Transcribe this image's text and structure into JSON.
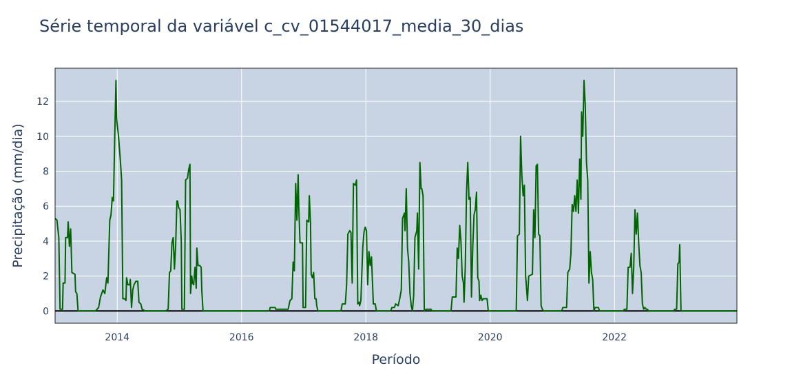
{
  "chart_data": {
    "type": "line",
    "title": "Série temporal da variável c_cv_01544017_media_30_dias",
    "xlabel": "Período",
    "ylabel": "Precipitação (mm/dia)",
    "xlim": [
      2013.0,
      2023.97
    ],
    "ylim": [
      -0.7,
      13.9
    ],
    "x_tick_labels": [
      "2014",
      "2016",
      "2018",
      "2020",
      "2022"
    ],
    "x_tick_values": [
      2014,
      2016,
      2018,
      2020,
      2022
    ],
    "y_tick_labels": [
      "0",
      "2",
      "4",
      "6",
      "8",
      "10",
      "12"
    ],
    "y_tick_values": [
      0,
      2,
      4,
      6,
      8,
      10,
      12
    ],
    "grid": true,
    "legend": "none",
    "colors": {
      "series": "#006400",
      "plot_bg": "#c8d4e3",
      "grid": "#ffffff",
      "zero_line": "#000000",
      "text": "#2a3f5f"
    },
    "series": [
      {
        "points": [
          [
            2013.0,
            5.3
          ],
          [
            2013.03,
            5.2
          ],
          [
            2013.06,
            4.2
          ],
          [
            2013.08,
            0.1
          ],
          [
            2013.12,
            0.1
          ],
          [
            2013.13,
            1.6
          ],
          [
            2013.16,
            1.6
          ],
          [
            2013.17,
            4.2
          ],
          [
            2013.2,
            4.2
          ],
          [
            2013.21,
            5.1
          ],
          [
            2013.23,
            3.7
          ],
          [
            2013.25,
            4.7
          ],
          [
            2013.27,
            2.2
          ],
          [
            2013.32,
            2.1
          ],
          [
            2013.33,
            1.1
          ],
          [
            2013.35,
            1.0
          ],
          [
            2013.37,
            0.0
          ],
          [
            2013.65,
            0.0
          ],
          [
            2013.7,
            0.2
          ],
          [
            2013.73,
            0.8
          ],
          [
            2013.77,
            1.2
          ],
          [
            2013.8,
            1.0
          ],
          [
            2013.83,
            1.9
          ],
          [
            2013.85,
            1.6
          ],
          [
            2013.88,
            5.2
          ],
          [
            2013.9,
            5.5
          ],
          [
            2013.92,
            6.5
          ],
          [
            2013.94,
            6.3
          ],
          [
            2013.96,
            10.0
          ],
          [
            2013.98,
            13.2
          ],
          [
            2013.99,
            11.0
          ],
          [
            2014.02,
            10.0
          ],
          [
            2014.05,
            8.6
          ],
          [
            2014.07,
            7.5
          ],
          [
            2014.09,
            0.7
          ],
          [
            2014.12,
            0.7
          ],
          [
            2014.14,
            0.6
          ],
          [
            2014.15,
            1.9
          ],
          [
            2014.17,
            1.5
          ],
          [
            2014.2,
            1.5
          ],
          [
            2014.21,
            1.8
          ],
          [
            2014.23,
            0.2
          ],
          [
            2014.25,
            1.2
          ],
          [
            2014.27,
            1.5
          ],
          [
            2014.3,
            1.7
          ],
          [
            2014.33,
            1.7
          ],
          [
            2014.35,
            0.5
          ],
          [
            2014.38,
            0.4
          ],
          [
            2014.4,
            0.1
          ],
          [
            2014.45,
            0.0
          ],
          [
            2014.78,
            0.0
          ],
          [
            2014.82,
            0.1
          ],
          [
            2014.84,
            2.2
          ],
          [
            2014.86,
            2.3
          ],
          [
            2014.88,
            3.9
          ],
          [
            2014.9,
            4.2
          ],
          [
            2014.92,
            2.4
          ],
          [
            2014.94,
            3.8
          ],
          [
            2014.96,
            6.3
          ],
          [
            2014.97,
            6.3
          ],
          [
            2014.99,
            5.9
          ],
          [
            2015.01,
            5.8
          ],
          [
            2015.03,
            4.0
          ],
          [
            2015.04,
            0.1
          ],
          [
            2015.08,
            0.1
          ],
          [
            2015.1,
            7.5
          ],
          [
            2015.13,
            7.6
          ],
          [
            2015.15,
            8.1
          ],
          [
            2015.17,
            8.4
          ],
          [
            2015.18,
            1.0
          ],
          [
            2015.2,
            2.0
          ],
          [
            2015.21,
            1.6
          ],
          [
            2015.23,
            1.5
          ],
          [
            2015.25,
            2.5
          ],
          [
            2015.27,
            1.3
          ],
          [
            2015.28,
            3.6
          ],
          [
            2015.3,
            2.6
          ],
          [
            2015.33,
            2.6
          ],
          [
            2015.35,
            2.5
          ],
          [
            2015.36,
            1.2
          ],
          [
            2015.38,
            0.0
          ],
          [
            2016.45,
            0.0
          ],
          [
            2016.46,
            0.2
          ],
          [
            2016.54,
            0.2
          ],
          [
            2016.55,
            0.1
          ],
          [
            2016.75,
            0.1
          ],
          [
            2016.78,
            0.6
          ],
          [
            2016.81,
            0.7
          ],
          [
            2016.83,
            2.8
          ],
          [
            2016.85,
            2.3
          ],
          [
            2016.87,
            7.3
          ],
          [
            2016.89,
            5.2
          ],
          [
            2016.91,
            7.8
          ],
          [
            2016.92,
            6.0
          ],
          [
            2016.94,
            3.9
          ],
          [
            2016.98,
            3.9
          ],
          [
            2016.99,
            0.2
          ],
          [
            2017.03,
            0.2
          ],
          [
            2017.05,
            5.2
          ],
          [
            2017.08,
            5.1
          ],
          [
            2017.09,
            6.6
          ],
          [
            2017.11,
            5.0
          ],
          [
            2017.12,
            2.1
          ],
          [
            2017.14,
            1.9
          ],
          [
            2017.16,
            2.2
          ],
          [
            2017.18,
            0.7
          ],
          [
            2017.2,
            0.7
          ],
          [
            2017.21,
            0.3
          ],
          [
            2017.23,
            0.0
          ],
          [
            2017.6,
            0.0
          ],
          [
            2017.62,
            0.4
          ],
          [
            2017.67,
            0.4
          ],
          [
            2017.69,
            1.5
          ],
          [
            2017.71,
            4.4
          ],
          [
            2017.74,
            4.6
          ],
          [
            2017.76,
            4.5
          ],
          [
            2017.78,
            1.6
          ],
          [
            2017.8,
            7.3
          ],
          [
            2017.83,
            7.2
          ],
          [
            2017.85,
            7.5
          ],
          [
            2017.87,
            0.4
          ],
          [
            2017.89,
            0.5
          ],
          [
            2017.9,
            0.3
          ],
          [
            2017.92,
            0.6
          ],
          [
            2017.95,
            3.6
          ],
          [
            2017.97,
            4.5
          ],
          [
            2017.99,
            4.8
          ],
          [
            2018.01,
            4.6
          ],
          [
            2018.03,
            1.5
          ],
          [
            2018.05,
            3.4
          ],
          [
            2018.07,
            2.6
          ],
          [
            2018.09,
            3.1
          ],
          [
            2018.12,
            0.4
          ],
          [
            2018.15,
            0.4
          ],
          [
            2018.17,
            0.0
          ],
          [
            2018.4,
            0.0
          ],
          [
            2018.42,
            0.2
          ],
          [
            2018.46,
            0.2
          ],
          [
            2018.48,
            0.4
          ],
          [
            2018.52,
            0.3
          ],
          [
            2018.55,
            0.8
          ],
          [
            2018.57,
            1.2
          ],
          [
            2018.59,
            5.3
          ],
          [
            2018.62,
            5.6
          ],
          [
            2018.63,
            4.6
          ],
          [
            2018.65,
            7.0
          ],
          [
            2018.67,
            3.6
          ],
          [
            2018.69,
            2.8
          ],
          [
            2018.71,
            1.0
          ],
          [
            2018.73,
            0.3
          ],
          [
            2018.75,
            0.0
          ],
          [
            2018.77,
            0.9
          ],
          [
            2018.79,
            4.2
          ],
          [
            2018.82,
            4.6
          ],
          [
            2018.83,
            5.6
          ],
          [
            2018.85,
            2.4
          ],
          [
            2018.87,
            8.5
          ],
          [
            2018.89,
            7.0
          ],
          [
            2018.9,
            7.0
          ],
          [
            2018.92,
            6.6
          ],
          [
            2018.94,
            0.0
          ],
          [
            2018.97,
            0.1
          ],
          [
            2019.05,
            0.1
          ],
          [
            2019.06,
            0.0
          ],
          [
            2019.37,
            0.0
          ],
          [
            2019.39,
            0.8
          ],
          [
            2019.45,
            0.8
          ],
          [
            2019.47,
            3.6
          ],
          [
            2019.49,
            3.0
          ],
          [
            2019.51,
            4.9
          ],
          [
            2019.53,
            4.0
          ],
          [
            2019.55,
            2.0
          ],
          [
            2019.57,
            1.6
          ],
          [
            2019.58,
            0.5
          ],
          [
            2019.6,
            2.5
          ],
          [
            2019.62,
            6.8
          ],
          [
            2019.64,
            8.5
          ],
          [
            2019.66,
            6.4
          ],
          [
            2019.68,
            6.5
          ],
          [
            2019.7,
            0.8
          ],
          [
            2019.72,
            3.7
          ],
          [
            2019.74,
            5.5
          ],
          [
            2019.76,
            5.8
          ],
          [
            2019.78,
            6.8
          ],
          [
            2019.8,
            1.9
          ],
          [
            2019.82,
            1.7
          ],
          [
            2019.83,
            0.6
          ],
          [
            2019.85,
            0.9
          ],
          [
            2019.87,
            0.6
          ],
          [
            2019.89,
            0.7
          ],
          [
            2019.95,
            0.7
          ],
          [
            2019.97,
            0.0
          ],
          [
            2020.42,
            0.0
          ],
          [
            2020.44,
            4.3
          ],
          [
            2020.47,
            4.4
          ],
          [
            2020.49,
            10.0
          ],
          [
            2020.51,
            7.8
          ],
          [
            2020.53,
            6.6
          ],
          [
            2020.55,
            7.2
          ],
          [
            2020.57,
            2.0
          ],
          [
            2020.6,
            0.6
          ],
          [
            2020.62,
            2.0
          ],
          [
            2020.68,
            2.1
          ],
          [
            2020.7,
            5.8
          ],
          [
            2020.72,
            4.2
          ],
          [
            2020.74,
            8.3
          ],
          [
            2020.76,
            8.4
          ],
          [
            2020.78,
            4.4
          ],
          [
            2020.8,
            4.3
          ],
          [
            2020.82,
            0.3
          ],
          [
            2020.84,
            0.1
          ],
          [
            2020.86,
            0.0
          ],
          [
            2021.15,
            0.0
          ],
          [
            2021.17,
            0.2
          ],
          [
            2021.23,
            0.2
          ],
          [
            2021.25,
            2.2
          ],
          [
            2021.28,
            2.4
          ],
          [
            2021.3,
            3.3
          ],
          [
            2021.32,
            6.1
          ],
          [
            2021.34,
            5.7
          ],
          [
            2021.36,
            6.6
          ],
          [
            2021.38,
            5.7
          ],
          [
            2021.4,
            7.5
          ],
          [
            2021.42,
            5.6
          ],
          [
            2021.44,
            8.7
          ],
          [
            2021.46,
            6.4
          ],
          [
            2021.47,
            11.4
          ],
          [
            2021.49,
            10.0
          ],
          [
            2021.51,
            13.2
          ],
          [
            2021.53,
            11.8
          ],
          [
            2021.55,
            8.5
          ],
          [
            2021.57,
            7.5
          ],
          [
            2021.59,
            1.6
          ],
          [
            2021.61,
            3.4
          ],
          [
            2021.63,
            2.2
          ],
          [
            2021.65,
            1.8
          ],
          [
            2021.67,
            0.0
          ],
          [
            2021.69,
            0.2
          ],
          [
            2021.74,
            0.2
          ],
          [
            2021.76,
            0.0
          ],
          [
            2022.14,
            0.0
          ],
          [
            2022.16,
            0.1
          ],
          [
            2022.2,
            0.1
          ],
          [
            2022.22,
            2.5
          ],
          [
            2022.25,
            2.5
          ],
          [
            2022.27,
            3.3
          ],
          [
            2022.29,
            1.0
          ],
          [
            2022.31,
            2.5
          ],
          [
            2022.33,
            5.8
          ],
          [
            2022.35,
            4.4
          ],
          [
            2022.37,
            5.6
          ],
          [
            2022.39,
            3.9
          ],
          [
            2022.41,
            2.6
          ],
          [
            2022.43,
            2.2
          ],
          [
            2022.45,
            0.4
          ],
          [
            2022.47,
            0.1
          ],
          [
            2022.49,
            0.2
          ],
          [
            2022.51,
            0.1
          ],
          [
            2022.53,
            0.1
          ],
          [
            2022.55,
            0.0
          ],
          [
            2022.95,
            0.0
          ],
          [
            2022.97,
            0.1
          ],
          [
            2023.0,
            0.1
          ],
          [
            2023.02,
            2.7
          ],
          [
            2023.04,
            2.8
          ],
          [
            2023.05,
            3.8
          ],
          [
            2023.07,
            0.0
          ],
          [
            2023.97,
            0.0
          ]
        ]
      }
    ]
  }
}
